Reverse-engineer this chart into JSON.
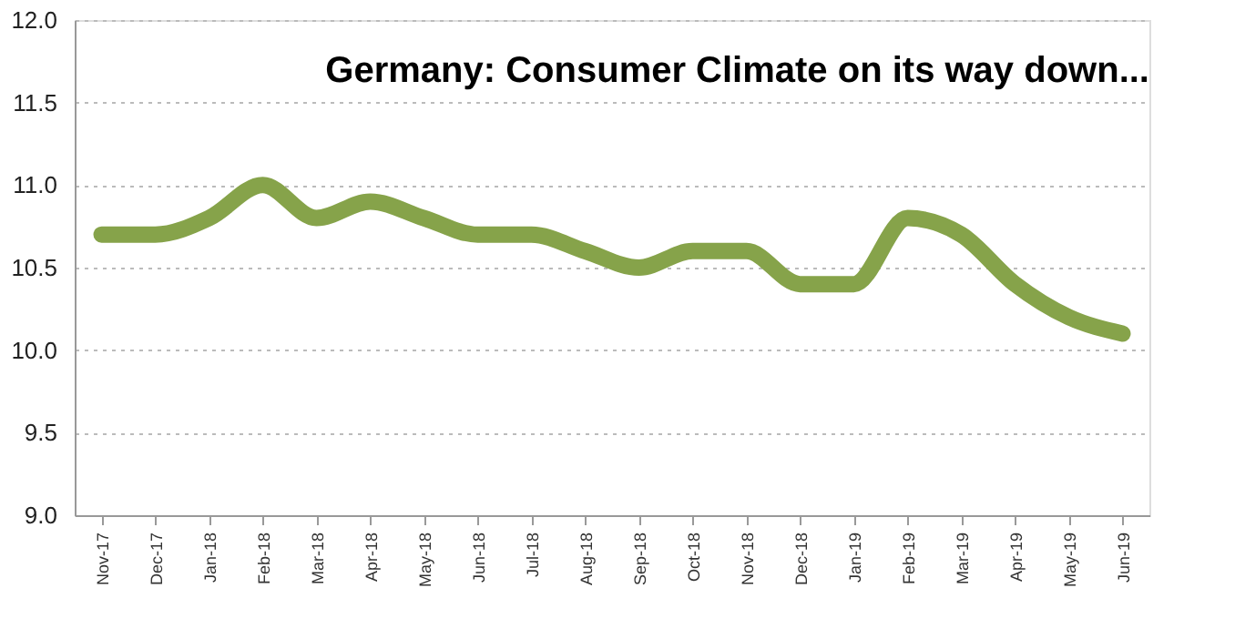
{
  "chart_data": {
    "type": "line",
    "title": "Germany: Consumer Climate on its way down...",
    "categories": [
      "Nov-17",
      "Dec-17",
      "Jan-18",
      "Feb-18",
      "Mar-18",
      "Apr-18",
      "May-18",
      "Jun-18",
      "Jul-18",
      "Aug-18",
      "Sep-18",
      "Oct-18",
      "Nov-18",
      "Dec-18",
      "Jan-19",
      "Feb-19",
      "Mar-19",
      "Apr-19",
      "May-19",
      "Jun-19"
    ],
    "series": [
      {
        "color": "#86a34a",
        "values": [
          10.7,
          10.7,
          10.8,
          11.0,
          10.8,
          10.9,
          10.8,
          10.7,
          10.7,
          10.6,
          10.5,
          10.6,
          10.6,
          10.4,
          10.4,
          10.8,
          10.7,
          10.4,
          10.2,
          10.1
        ]
      }
    ],
    "ylim": [
      9.0,
      12.0
    ],
    "yticks": [
      {
        "value": 9.0,
        "label": "9.0"
      },
      {
        "value": 9.5,
        "label": "9.5"
      },
      {
        "value": 10.0,
        "label": "10.0"
      },
      {
        "value": 10.5,
        "label": "10.5"
      },
      {
        "value": 11.0,
        "label": "11.0"
      },
      {
        "value": 11.5,
        "label": "11.5"
      },
      {
        "value": 12.0,
        "label": "12.0"
      }
    ],
    "grid": "y",
    "line_style": "solid"
  }
}
